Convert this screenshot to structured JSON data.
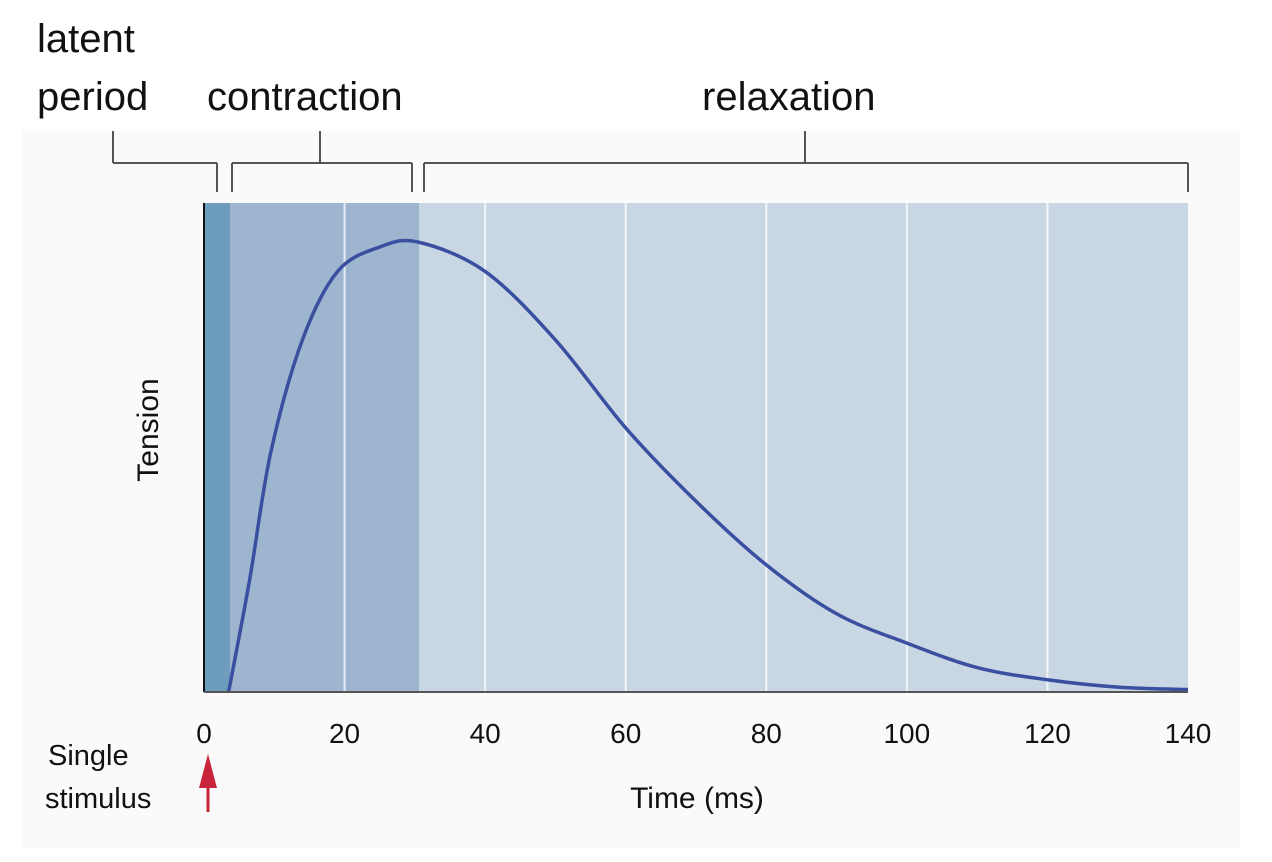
{
  "chart_data": {
    "type": "line",
    "xlabel": "Time (ms)",
    "ylabel": "Tension",
    "xlim": [
      0,
      140
    ],
    "ylim": [
      0,
      1
    ],
    "x_ticks": [
      0,
      20,
      40,
      60,
      80,
      100,
      120,
      140
    ],
    "x_tick_labels": [
      "0",
      "20",
      "40",
      "60",
      "80",
      "100",
      "120",
      "140"
    ],
    "grid": "vertical lines at x ticks",
    "phases": [
      {
        "label_lines": [
          "latent",
          "period"
        ],
        "start": 0,
        "end": 3.7,
        "color": "#6e9cbd"
      },
      {
        "label_lines": [
          "contraction"
        ],
        "start": 3.7,
        "end": 30.6,
        "color": "#9db5cf"
      },
      {
        "label_lines": [
          "relaxation"
        ],
        "start": 30.6,
        "end": 140,
        "color": "#c9d7e5"
      }
    ],
    "series": [
      {
        "color": "#3a4fa0",
        "x": [
          3.5,
          6.5,
          9.5,
          14,
          19,
          25,
          30.5,
          40,
          50,
          60,
          70,
          80,
          90,
          100,
          110,
          120,
          130,
          140
        ],
        "y": [
          0,
          0.23,
          0.49,
          0.72,
          0.86,
          0.91,
          0.92,
          0.86,
          0.72,
          0.54,
          0.39,
          0.26,
          0.16,
          0.1,
          0.05,
          0.025,
          0.01,
          0.005
        ]
      }
    ],
    "annotation": {
      "label_lines": [
        "Single",
        "stimulus"
      ],
      "x": 0,
      "arrow_color": "#c8243a"
    }
  }
}
